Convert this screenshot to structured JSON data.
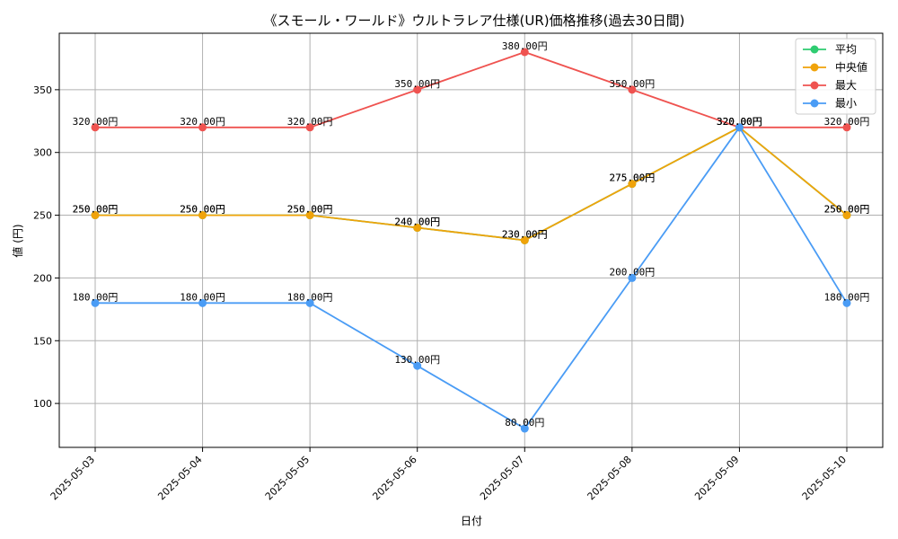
{
  "chart_data": {
    "type": "line",
    "title": "《スモール・ワールド》ウルトラレア仕様(UR)価格推移(過去30日間)",
    "xlabel": "日付",
    "ylabel": "値 (円)",
    "categories": [
      "2025-05-03",
      "2025-05-04",
      "2025-05-05",
      "2025-05-06",
      "2025-05-07",
      "2025-05-08",
      "2025-05-09",
      "2025-05-10"
    ],
    "ylim": [
      65,
      395
    ],
    "yticks": [
      100,
      150,
      200,
      250,
      300,
      350
    ],
    "grid": true,
    "legend_position": "top-right",
    "value_suffix": "円",
    "series": [
      {
        "name": "平均",
        "color": "#2ecc71",
        "values": [
          250,
          250,
          250,
          240,
          230,
          275,
          320,
          250
        ]
      },
      {
        "name": "中央値",
        "color": "#f0a30a",
        "values": [
          250,
          250,
          250,
          240,
          230,
          275,
          320,
          250
        ]
      },
      {
        "name": "最大",
        "color": "#ef5350",
        "values": [
          320,
          320,
          320,
          350,
          380,
          350,
          320,
          320
        ]
      },
      {
        "name": "最小",
        "color": "#4a9cf5",
        "values": [
          180,
          180,
          180,
          130,
          80,
          200,
          320,
          180
        ]
      }
    ]
  }
}
